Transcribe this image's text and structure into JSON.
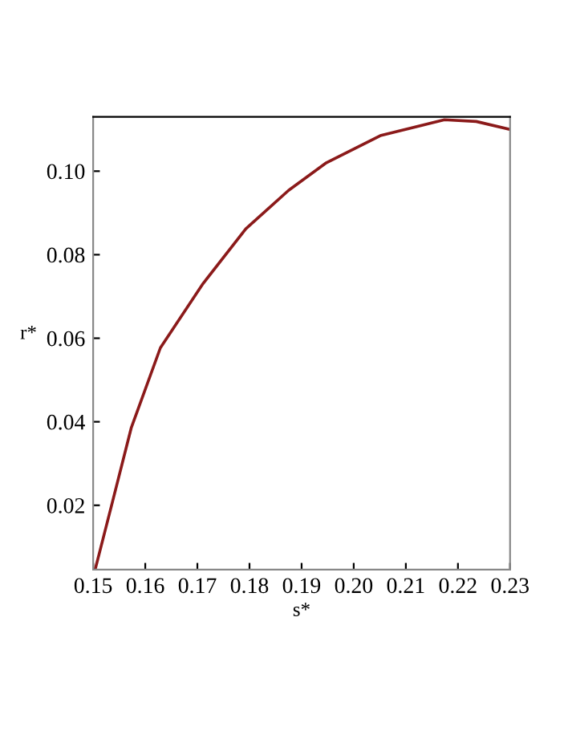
{
  "chart_data": {
    "type": "line",
    "xlabel": "s*",
    "ylabel": "r*",
    "x": [
      0.1504,
      0.1537,
      0.1573,
      0.1629,
      0.1711,
      0.1793,
      0.1875,
      0.1946,
      0.2051,
      0.2174,
      0.2235,
      0.23
    ],
    "series": [
      {
        "color": "#8b1a1a",
        "values": [
          0.0047,
          0.0208,
          0.0385,
          0.0577,
          0.0731,
          0.0862,
          0.0954,
          0.1019,
          0.1085,
          0.1123,
          0.1119,
          0.11
        ]
      }
    ],
    "xlim": [
      0.15,
      0.23
    ],
    "ylim": [
      0.0046,
      0.113
    ],
    "xticks": [
      {
        "value": 0.15,
        "label": "0.15"
      },
      {
        "value": 0.16,
        "label": "0.16"
      },
      {
        "value": 0.17,
        "label": "0.17"
      },
      {
        "value": 0.18,
        "label": "0.18"
      },
      {
        "value": 0.19,
        "label": "0.19"
      },
      {
        "value": 0.2,
        "label": "0.20"
      },
      {
        "value": 0.21,
        "label": "0.21"
      },
      {
        "value": 0.22,
        "label": "0.22"
      },
      {
        "value": 0.23,
        "label": "0.23"
      }
    ],
    "yticks": [
      {
        "value": 0.02,
        "label": "0.02"
      },
      {
        "value": 0.04,
        "label": "0.04"
      },
      {
        "value": 0.06,
        "label": "0.06"
      },
      {
        "value": 0.08,
        "label": "0.08"
      },
      {
        "value": 0.1,
        "label": "0.10"
      }
    ],
    "grid": false,
    "legend": false,
    "marker": "none",
    "line_style": "solid"
  }
}
